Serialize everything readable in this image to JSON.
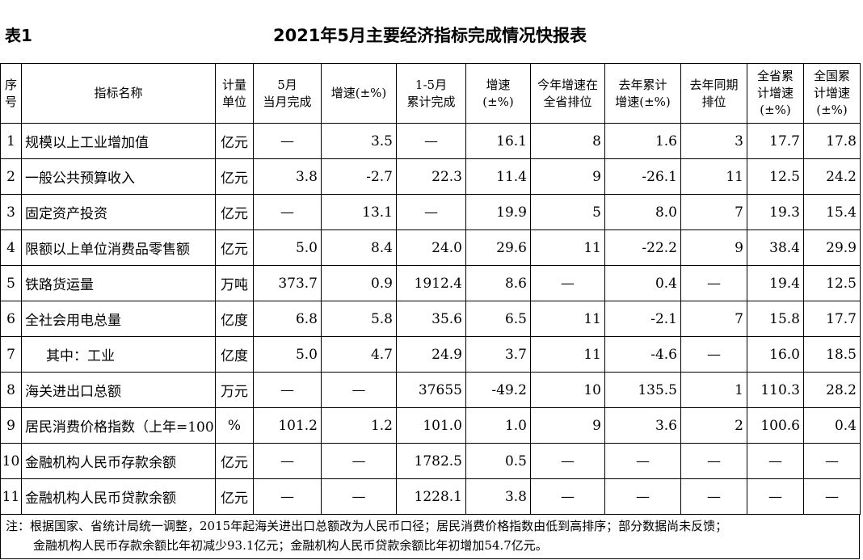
{
  "title_block": {
    "label": "表1",
    "title": "2021年5月主要经济指标完成情况快报表"
  },
  "table": {
    "header": [
      [
        "序",
        "号"
      ],
      [
        "指标名称"
      ],
      [
        "计量",
        "单位"
      ],
      [
        "5月",
        "当月完成"
      ],
      [
        "增速(±%)"
      ],
      [
        "1-5月",
        "累计完成"
      ],
      [
        "增速",
        "(±%)"
      ],
      [
        "今年增速在",
        "全省排位"
      ],
      [
        "去年累计",
        "增速(±%)"
      ],
      [
        "去年同期",
        "排位"
      ],
      [
        "全省累",
        "计增速",
        "(±%)"
      ],
      [
        "全国累",
        "计增速",
        "(±%)"
      ]
    ],
    "rows": [
      [
        "1",
        "规模以上工业增加值",
        "亿元",
        "—",
        "3.5",
        "—",
        "16.1",
        "8",
        "1.6",
        "3",
        "17.7",
        "17.8"
      ],
      [
        "2",
        "一般公共预算收入",
        "亿元",
        "3.8",
        "-2.7",
        "22.3",
        "11.4",
        "9",
        "-26.1",
        "11",
        "12.5",
        "24.2"
      ],
      [
        "3",
        "固定资产投资",
        "亿元",
        "—",
        "13.1",
        "—",
        "19.9",
        "5",
        "8.0",
        "7",
        "19.3",
        "15.4"
      ],
      [
        "4",
        "限额以上单位消费品零售额",
        "亿元",
        "5.0",
        "8.4",
        "24.0",
        "29.6",
        "11",
        "-22.2",
        "9",
        "38.4",
        "29.9"
      ],
      [
        "5",
        "铁路货运量",
        "万吨",
        "373.7",
        "0.9",
        "1912.4",
        "8.6",
        "—",
        "0.4",
        "—",
        "19.4",
        "12.5"
      ],
      [
        "6",
        "全社会用电总量",
        "亿度",
        "6.8",
        "5.8",
        "35.6",
        "6.5",
        "11",
        "-2.1",
        "7",
        "15.8",
        "17.7"
      ],
      [
        "7",
        "其中：工业",
        "亿度",
        "5.0",
        "4.7",
        "24.9",
        "3.7",
        "11",
        "-4.6",
        "—",
        "16.0",
        "18.5"
      ],
      [
        "8",
        "海关进出口总额",
        "万元",
        "—",
        "—",
        "37655",
        "-49.2",
        "10",
        "135.5",
        "1",
        "110.3",
        "28.2"
      ],
      [
        "9",
        "居民消费价格指数（上年=100",
        "%",
        "101.2",
        "1.2",
        "101.0",
        "1.0",
        "9",
        "3.6",
        "2",
        "100.6",
        "0.4"
      ],
      [
        "10",
        "金融机构人民币存款余额",
        "亿元",
        "—",
        "—",
        "1782.5",
        "0.5",
        "—",
        "—",
        "—",
        "—",
        "—"
      ],
      [
        "11",
        "金融机构人民币贷款余额",
        "亿元",
        "—",
        "—",
        "1228.1",
        "3.8",
        "—",
        "—",
        "—",
        "—",
        "—"
      ]
    ]
  },
  "note": [
    "注：根据国家、省统计局统一调整，2015年起海关进出口总额改为人民币口径；居民消费价格指数由低到高排序；部分数据尚未反馈；",
    "金融机构人民币存款余额比年初减少93.1亿元；金融机构人民币贷款余额比年初增加54.7亿元。"
  ]
}
